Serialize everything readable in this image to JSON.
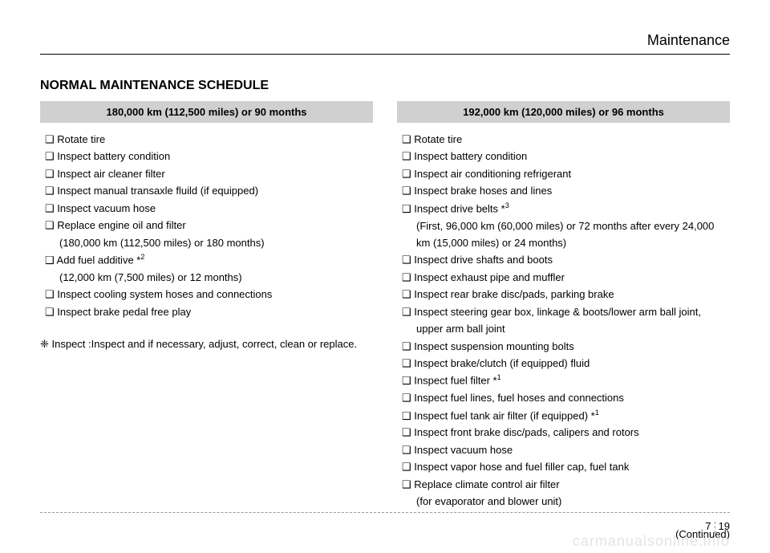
{
  "header": {
    "section": "Maintenance"
  },
  "title": "NORMAL MAINTENANCE SCHEDULE",
  "left": {
    "header": "180,000 km (112,500 miles) or 90 months",
    "items": [
      {
        "text": "Rotate tire"
      },
      {
        "text": "Inspect battery condition"
      },
      {
        "text": "Inspect air cleaner filter"
      },
      {
        "text": "Inspect manual transaxle fluild (if equipped)"
      },
      {
        "text": "Inspect vacuum hose"
      },
      {
        "text": "Replace engine oil and filter",
        "sub": "(180,000 km (112,500 miles) or 180 months)"
      },
      {
        "text": "Add fuel additive *",
        "sup": "2",
        "sub": "(12,000 km (7,500 miles) or 12 months)"
      },
      {
        "text": "Inspect cooling system hoses and connections"
      },
      {
        "text": "Inspect brake pedal free play"
      }
    ],
    "note_label": "❈ Inspect : ",
    "note_text": "Inspect and if necessary, adjust, correct, clean or replace."
  },
  "right": {
    "header": "192,000 km (120,000 miles) or 96 months",
    "items": [
      {
        "text": "Rotate tire"
      },
      {
        "text": "Inspect battery condition"
      },
      {
        "text": "Inspect air conditioning refrigerant"
      },
      {
        "text": "Inspect brake hoses and lines"
      },
      {
        "text": "Inspect drive belts *",
        "sup": "3",
        "sub": "(First, 96,000 km (60,000 miles) or 72 months after every 24,000 km (15,000 miles) or 24 months)"
      },
      {
        "text": "Inspect drive shafts and boots"
      },
      {
        "text": "Inspect exhaust pipe and muffler"
      },
      {
        "text": "Inspect rear brake disc/pads, parking brake"
      },
      {
        "text": "Inspect steering gear box, linkage & boots/lower arm ball joint, upper arm ball joint"
      },
      {
        "text": "Inspect suspension mounting bolts"
      },
      {
        "text": "Inspect brake/clutch (if equipped) fluid"
      },
      {
        "text": "Inspect fuel filter *",
        "sup": "1"
      },
      {
        "text": "Inspect fuel lines, fuel hoses and connections"
      },
      {
        "text": "Inspect fuel tank air filter (if equipped) *",
        "sup": "1"
      },
      {
        "text": "Inspect front brake disc/pads, calipers and rotors"
      },
      {
        "text": "Inspect vacuum hose"
      },
      {
        "text": "Inspect vapor hose and fuel filler cap, fuel tank"
      },
      {
        "text": "Replace climate control air filter",
        "sub": "(for evaporator and blower unit)"
      }
    ],
    "continued": "(Continued)"
  },
  "footer": {
    "left_num": "7",
    "right_num": "19",
    "watermark": "carmanualsonline.info"
  }
}
